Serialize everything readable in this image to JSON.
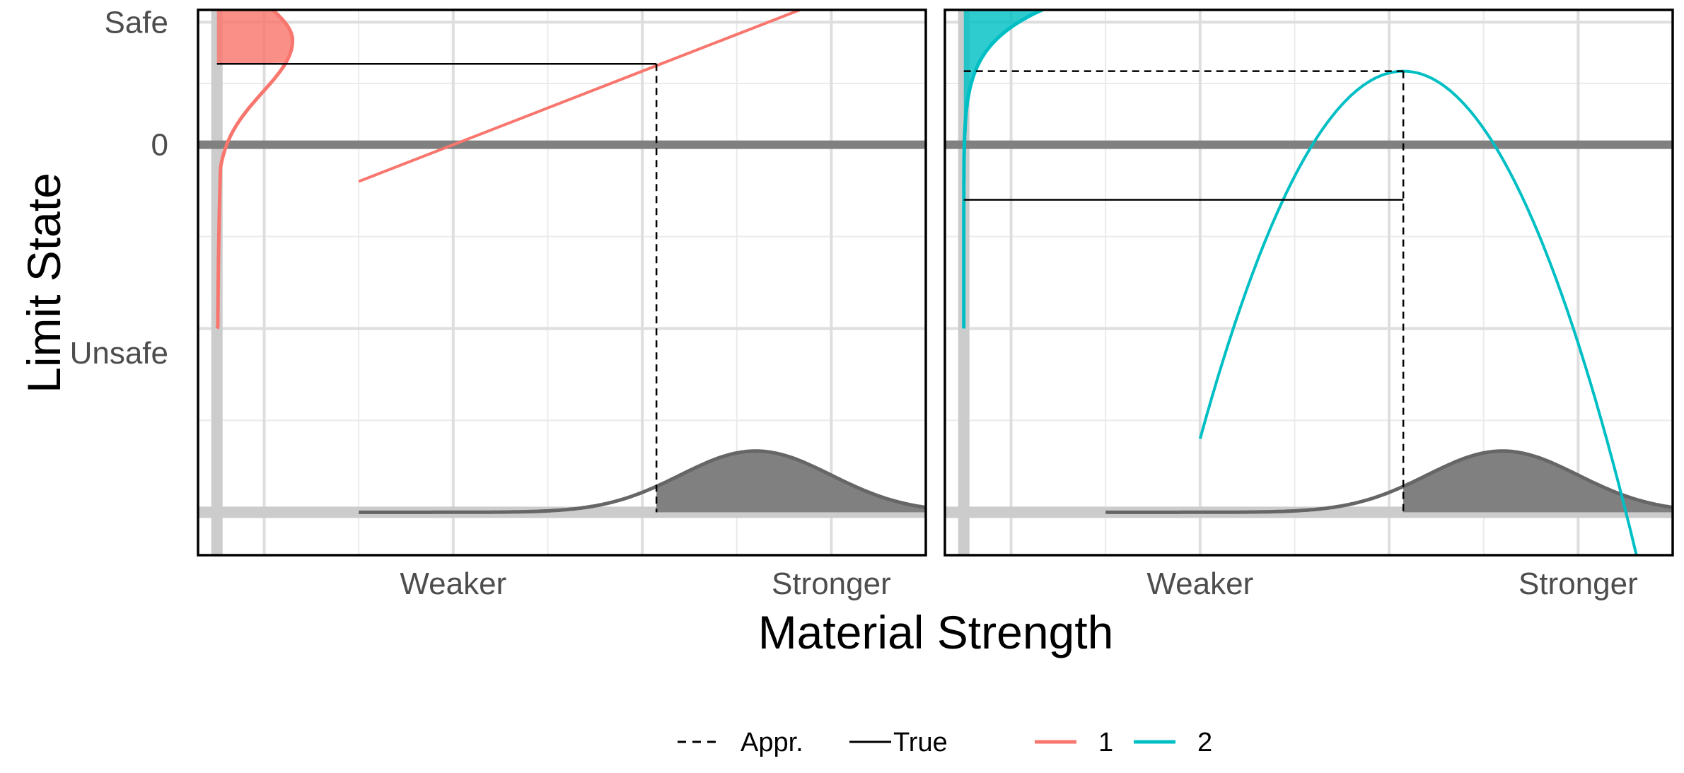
{
  "chart_data": {
    "type": "line",
    "facet_layout": "two panels side by side, shared axes",
    "xlabel": "Material Strength",
    "ylabel": "Limit State",
    "xlim": [
      -1.7,
      6.0
    ],
    "ylim": [
      -3.35,
      1.1
    ],
    "x_ticks": [
      {
        "label": "Weaker",
        "x": 1.0
      },
      {
        "label": "Stronger",
        "x": 5.0
      }
    ],
    "y_ticks": [
      {
        "label": "Safe",
        "y": 1.0
      },
      {
        "label": "0",
        "y": 0.0
      },
      {
        "label": "Unsafe",
        "y": -1.7
      }
    ],
    "x_grid_major": [
      -1,
      1,
      3,
      5
    ],
    "x_grid_minor": [
      0,
      2,
      4,
      6
    ],
    "y_grid_major": [
      -3,
      -1.5,
      0,
      1
    ],
    "y_grid_minor": [
      -2.25,
      -0.75,
      0.5
    ],
    "zero_line": {
      "y": 0,
      "color": "#808080"
    },
    "grid": true,
    "legend_position": "bottom",
    "legend": {
      "linetype": [
        {
          "label": "Appr.",
          "dash": "dashed"
        },
        {
          "label": "True",
          "dash": "solid"
        }
      ],
      "colour": [
        {
          "label": "1",
          "color": "#F8766D"
        },
        {
          "label": "2",
          "color": "#00BFC4"
        }
      ]
    },
    "strength_density": {
      "mean": 4.2,
      "sd": 0.8,
      "baseline": -3.0,
      "peak_height": 0.5,
      "x_range": [
        0,
        6
      ],
      "shaded_from_x": [
        3.15,
        3.15
      ],
      "color": "#666666",
      "fill": "#808080"
    },
    "panels": [
      {
        "series": "1",
        "color": "#F8766D",
        "limit_state_curve": {
          "form": "linear",
          "x_range": [
            0,
            6
          ],
          "points": [
            [
              0,
              -0.3
            ],
            [
              6,
              1.5
            ]
          ]
        },
        "true_reference": {
          "x": 3.15,
          "y": 0.66
        },
        "appr_reference": {
          "x": 3.15,
          "y": 0.66
        },
        "limit_state_density": {
          "form": "skew",
          "mode_y": 0.85,
          "y_range": [
            -1.5,
            1.5
          ],
          "peak_width": 0.8,
          "shade_above_y": 0.66
        }
      },
      {
        "series": "2",
        "color": "#00BFC4",
        "limit_state_curve": {
          "form": "parabola",
          "x_range": [
            1,
            6
          ],
          "points": [
            [
              1,
              -2.4
            ],
            [
              3.15,
              0.6
            ],
            [
              6,
              -2.4
            ]
          ]
        },
        "true_reference": {
          "x": 3.15,
          "y": -0.45
        },
        "appr_reference": {
          "x": 3.15,
          "y": 0.6
        },
        "limit_state_density": {
          "form": "exponential-tail",
          "y_range": [
            -1.5,
            1.5
          ],
          "peak_width": 3.0,
          "shade_above_y": -0.45
        }
      }
    ]
  }
}
